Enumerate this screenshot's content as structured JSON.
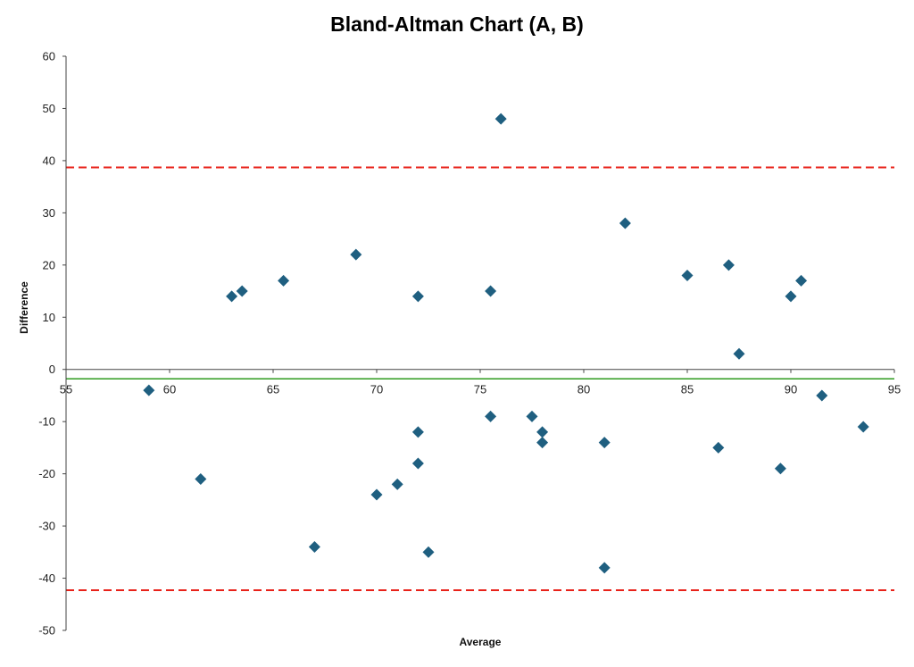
{
  "chart_data": {
    "type": "scatter",
    "title": "Bland-Altman Chart (A, B)",
    "xlabel": "Average",
    "ylabel": "Difference",
    "xlim": [
      55,
      95
    ],
    "ylim": [
      -50,
      60
    ],
    "xticks": [
      "55",
      "60",
      "65",
      "70",
      "75",
      "80",
      "85",
      "90",
      "95"
    ],
    "yticks": [
      "-50",
      "-40",
      "-30",
      "-20",
      "-10",
      "0",
      "10",
      "20",
      "30",
      "40",
      "50",
      "60"
    ],
    "grid": false,
    "legend": "none",
    "series": [
      {
        "color": "#1f5f80",
        "marker": "diamond",
        "points": [
          [
            59,
            -4
          ],
          [
            61.5,
            -21
          ],
          [
            63,
            14
          ],
          [
            63.5,
            15
          ],
          [
            65.5,
            17
          ],
          [
            67,
            -34
          ],
          [
            69,
            22
          ],
          [
            70,
            -24
          ],
          [
            71,
            -22
          ],
          [
            72,
            14
          ],
          [
            72,
            -12
          ],
          [
            72,
            -18
          ],
          [
            72.5,
            -35
          ],
          [
            75.5,
            15
          ],
          [
            75.5,
            -9
          ],
          [
            76,
            48
          ],
          [
            77.5,
            -9
          ],
          [
            78,
            -12
          ],
          [
            78,
            -14
          ],
          [
            81,
            -14
          ],
          [
            81,
            -38
          ],
          [
            82,
            28
          ],
          [
            85,
            18
          ],
          [
            86.5,
            -15
          ],
          [
            87,
            20
          ],
          [
            87.5,
            3
          ],
          [
            89.5,
            -19
          ],
          [
            90,
            14
          ],
          [
            90.5,
            17
          ],
          [
            91.5,
            -5
          ],
          [
            93.5,
            -11
          ]
        ]
      }
    ],
    "reference_lines": [
      {
        "kind": "mean",
        "y": -1.8,
        "color": "#2e9b1e",
        "style": "solid"
      },
      {
        "kind": "upper-limit",
        "y": 38.7,
        "color": "#e8221a",
        "style": "dashed"
      },
      {
        "kind": "lower-limit",
        "y": -42.3,
        "color": "#e8221a",
        "style": "dashed"
      }
    ]
  }
}
